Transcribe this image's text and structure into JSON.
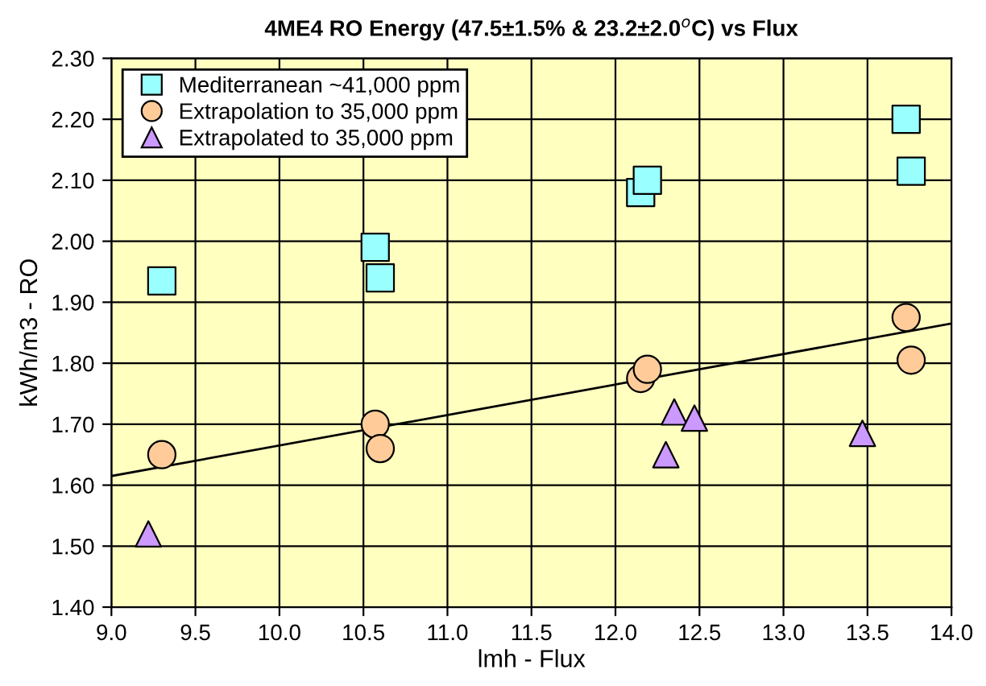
{
  "chart_data": {
    "type": "scatter",
    "title": "4ME4 RO Energy (47.5±1.5% & 23.2±2.0$^{o}$C) vs Flux",
    "xlabel": "lmh - Flux",
    "ylabel": "kWh/m3 - RO",
    "xlim": [
      9.0,
      14.0
    ],
    "xticks": [
      {
        "value": 9.0,
        "label": "9.0"
      },
      9.5,
      {
        "value": 10.0,
        "label": "10.0"
      },
      10.5,
      {
        "value": 11.0,
        "label": "11.0"
      },
      11.5,
      {
        "value": 12.0,
        "label": "12.0"
      },
      12.5,
      {
        "value": 13.0,
        "label": "13.0"
      },
      13.5,
      {
        "value": 14.0,
        "label": "14.0"
      }
    ],
    "ylim": [
      1.4,
      2.3
    ],
    "yticks": [
      {
        "value": 1.4,
        "label": "1.40"
      },
      {
        "value": 1.5,
        "label": "1.50"
      },
      {
        "value": 1.6,
        "label": "1.60"
      },
      {
        "value": 1.7,
        "label": "1.70"
      },
      {
        "value": 1.8,
        "label": "1.80"
      },
      {
        "value": 1.9,
        "label": "1.90"
      },
      {
        "value": 2.0,
        "label": "2.00"
      },
      {
        "value": 2.1,
        "label": "2.10"
      },
      {
        "value": 2.2,
        "label": "2.20"
      },
      {
        "value": 2.3,
        "label": "2.30"
      }
    ],
    "grid": true,
    "legend": "top left",
    "series": [
      {
        "name": "Mediterranean ~41,000 ppm",
        "color": "#99ffff",
        "marker": "square",
        "x": [
          9.3,
          10.57,
          10.6,
          12.15,
          12.19,
          13.73,
          13.76
        ],
        "values": [
          1.935,
          1.99,
          1.94,
          2.08,
          2.1,
          2.2,
          2.115
        ]
      },
      {
        "name": "Extrapolation to 35,000 ppm",
        "color": "#ffcc99",
        "marker": "circle",
        "x": [
          9.3,
          10.57,
          10.6,
          12.15,
          12.19,
          13.73,
          13.76
        ],
        "values": [
          1.65,
          1.7,
          1.66,
          1.775,
          1.79,
          1.875,
          1.805
        ]
      },
      {
        "name": "Extrapolated to 35,000 ppm",
        "color": "#cc99ff",
        "marker": "triangle",
        "x": [
          9.22,
          12.3,
          12.35,
          12.47,
          13.47
        ],
        "values": [
          1.52,
          1.65,
          1.72,
          1.71,
          1.685
        ]
      },
      {
        "type": "line",
        "color": "#000000",
        "marker": "none",
        "x": [
          9.0,
          14.0
        ],
        "values": [
          1.615,
          1.865
        ]
      }
    ]
  }
}
